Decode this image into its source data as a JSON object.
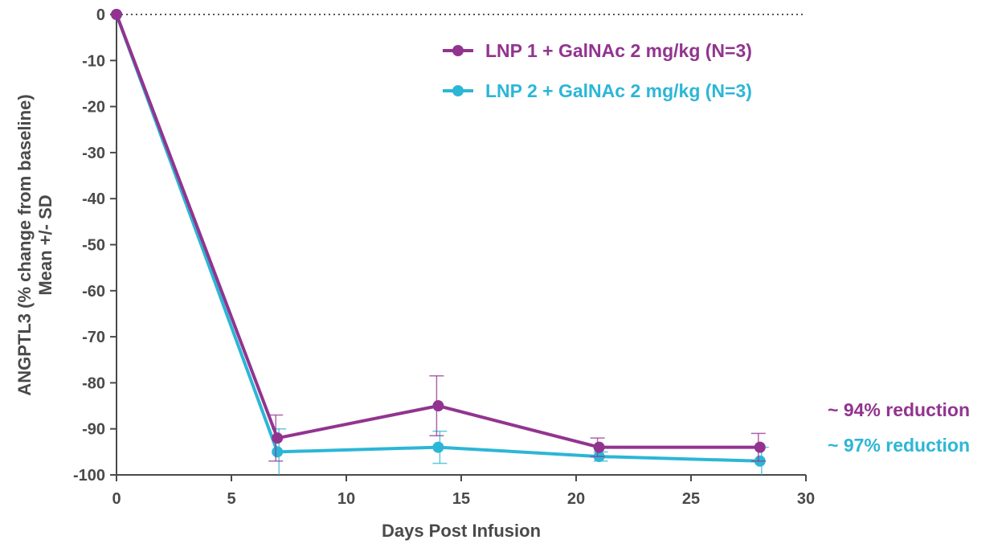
{
  "chart_data": {
    "type": "line",
    "xlabel": "Days Post Infusion",
    "ylabel_line1": "ANGPTL3 (% change from baseline)",
    "ylabel_line2": "Mean +/- SD",
    "xlim": [
      0,
      30
    ],
    "ylim": [
      -100,
      0
    ],
    "xticks": [
      "0",
      "5",
      "10",
      "15",
      "20",
      "25",
      "30"
    ],
    "yticks": [
      "0",
      "-10",
      "-20",
      "-30",
      "-40",
      "-50",
      "-60",
      "-70",
      "-80",
      "-90",
      "-100"
    ],
    "x": [
      0,
      7,
      14,
      21,
      28
    ],
    "series": [
      {
        "name": "LNP 1 + GalNAc 2 mg/kg (N=3)",
        "color": "#92348f",
        "values": [
          0,
          -92,
          -85,
          -94,
          -94
        ],
        "sd": [
          0,
          5,
          6.5,
          2,
          3
        ]
      },
      {
        "name": "LNP 2 + GalNAc 2 mg/kg (N=3)",
        "color": "#2cb6d6",
        "values": [
          0,
          -95,
          -94,
          -96,
          -97
        ],
        "sd": [
          0,
          5,
          3.5,
          1,
          3
        ]
      }
    ],
    "annotations": [
      {
        "text": "~ 94% reduction",
        "color": "#92348f"
      },
      {
        "text": "~ 97% reduction",
        "color": "#2cb6d6"
      }
    ],
    "reference_line": 0,
    "legend": "top-right",
    "grid": false
  }
}
